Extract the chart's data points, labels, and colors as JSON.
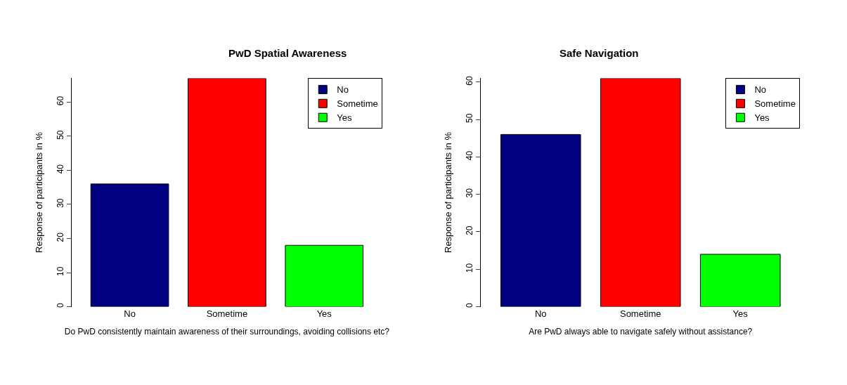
{
  "chart_data": [
    {
      "type": "bar",
      "title": "PwD Spatial Awareness",
      "xlabel": "Do PwD consistently maintain awareness of their surroundings, avoiding collisions etc?",
      "ylabel": "Response of participants in %",
      "categories": [
        "No",
        "Sometime",
        "Yes"
      ],
      "series": [
        {
          "name": "No",
          "color": "#000080",
          "values": [
            36,
            null,
            null
          ]
        },
        {
          "name": "Sometime",
          "color": "#ff0000",
          "values": [
            null,
            67,
            null
          ]
        },
        {
          "name": "Yes",
          "color": "#00ff00",
          "values": [
            null,
            null,
            18
          ]
        }
      ],
      "ylim": [
        0,
        67
      ],
      "yticks": [
        0,
        10,
        20,
        30,
        40,
        50,
        60
      ],
      "legend": "top right"
    },
    {
      "type": "bar",
      "title": "Safe Navigation",
      "xlabel": "Are PwD always able to navigate safely without assistance?",
      "ylabel": "Response of participants in %",
      "categories": [
        "No",
        "Sometime",
        "Yes"
      ],
      "series": [
        {
          "name": "No",
          "color": "#000080",
          "values": [
            46,
            null,
            null
          ]
        },
        {
          "name": "Sometime",
          "color": "#ff0000",
          "values": [
            null,
            61,
            null
          ]
        },
        {
          "name": "Yes",
          "color": "#00ff00",
          "values": [
            null,
            null,
            14
          ]
        }
      ],
      "ylim": [
        0,
        61
      ],
      "yticks": [
        0,
        10,
        20,
        30,
        40,
        50,
        60
      ],
      "legend": "top right"
    }
  ]
}
